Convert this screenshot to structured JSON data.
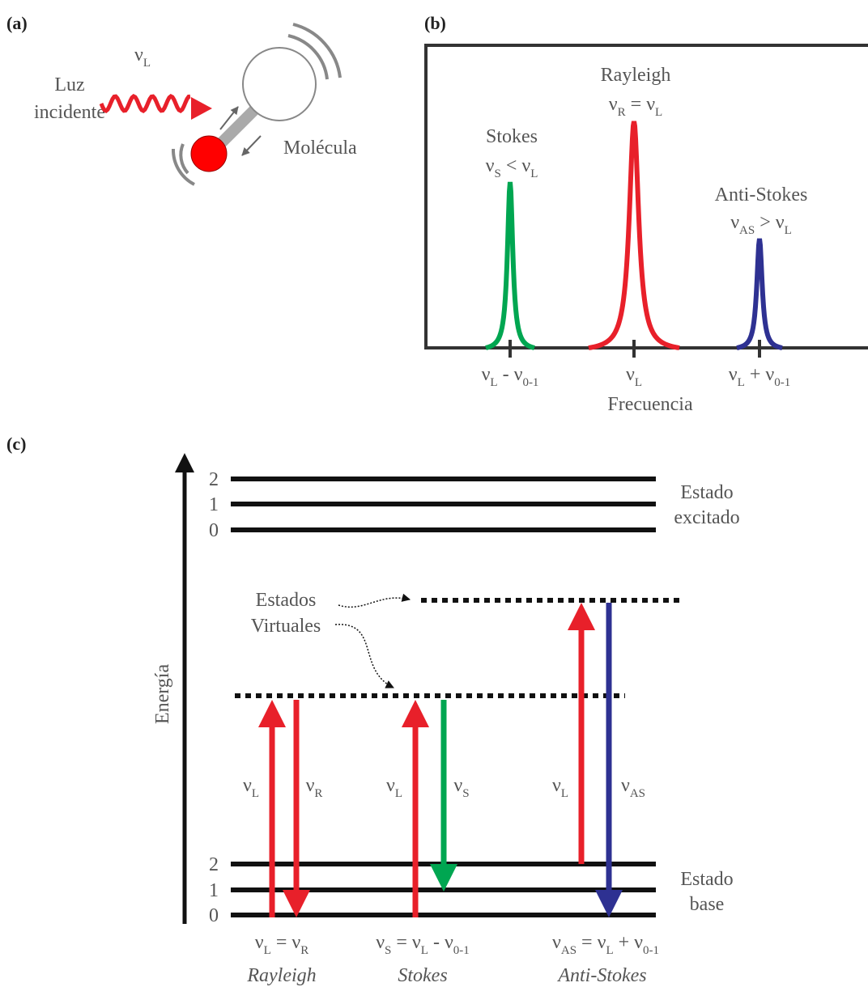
{
  "a": {
    "label": "(a)",
    "light": [
      "Luz",
      "incidente"
    ],
    "freq": [
      "ν",
      "L"
    ],
    "molecule": "Molécula"
  },
  "b": {
    "label": "(b)",
    "peaks": [
      {
        "name": "Stokes",
        "relation": [
          "ν",
          "S",
          " < ν",
          "L"
        ]
      },
      {
        "name": "Rayleigh",
        "relation": [
          "ν",
          "R",
          " = ν",
          "L"
        ]
      },
      {
        "name": "Anti-Stokes",
        "relation": [
          "ν",
          "AS",
          " > ν",
          "L"
        ]
      }
    ],
    "ticks": [
      [
        "ν",
        "L",
        " - ν",
        "0-1"
      ],
      [
        "ν",
        "L"
      ],
      [
        "ν",
        "L",
        " + ν",
        "0-1"
      ]
    ],
    "xlabel": "Frecuencia"
  },
  "c": {
    "label": "(c)",
    "ylabel": "Energía",
    "excited": {
      "levels": [
        "2",
        "1",
        "0"
      ],
      "name": [
        "Estado",
        "excitado"
      ]
    },
    "ground": {
      "levels": [
        "2",
        "1",
        "0"
      ],
      "name": [
        "Estado",
        "base"
      ]
    },
    "virtual": [
      "Estados",
      "Virtuales"
    ],
    "transitions": [
      {
        "process": "Rayleigh",
        "up": [
          "ν",
          "L"
        ],
        "down": [
          "ν",
          "R"
        ],
        "equation": [
          "ν",
          "L",
          " = ν",
          "R"
        ]
      },
      {
        "process": "Stokes",
        "up": [
          "ν",
          "L"
        ],
        "down": [
          "ν",
          "S"
        ],
        "equation": [
          "ν",
          "S",
          " = ν",
          "L",
          " - ν",
          "0-1"
        ]
      },
      {
        "process": "Anti-Stokes",
        "up": [
          "ν",
          "L"
        ],
        "down": [
          "ν",
          "AS"
        ],
        "equation": [
          "ν",
          "AS",
          " = ν",
          "L",
          " + ν",
          "0-1"
        ]
      }
    ]
  }
}
